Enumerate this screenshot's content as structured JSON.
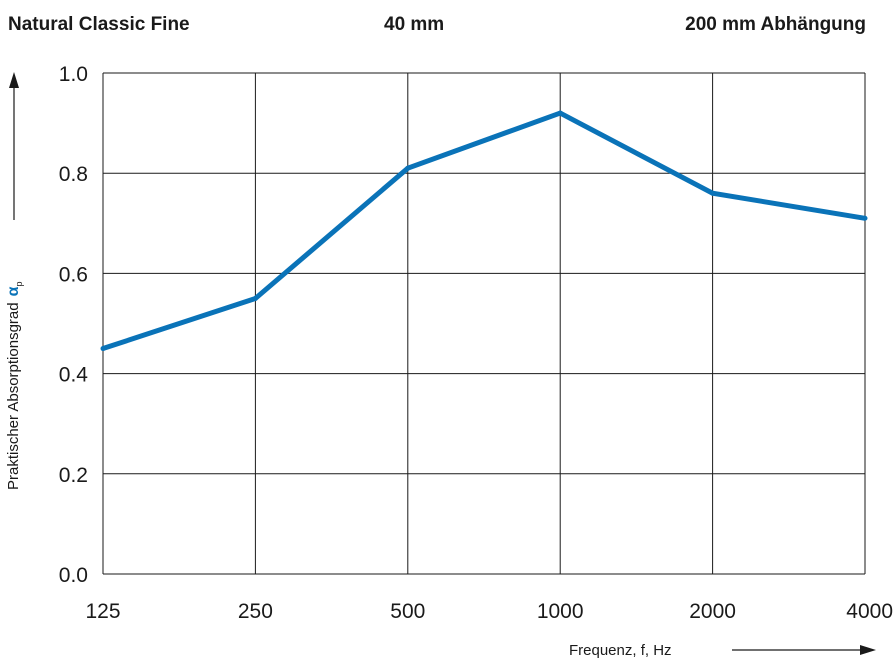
{
  "header": {
    "product": "Natural Classic Fine",
    "thickness": "40 mm",
    "suspension": "200 mm Abhängung"
  },
  "chart_data": {
    "type": "line",
    "categories": [
      "125",
      "250",
      "500",
      "1000",
      "2000",
      "4000"
    ],
    "series": [
      {
        "values": [
          0.45,
          0.55,
          0.81,
          0.92,
          0.76,
          0.71
        ]
      }
    ],
    "xlabel": "Frequenz, f, Hz",
    "ylabel": "Praktischer Absorptionsgrad",
    "ylabel_symbol": "α",
    "ylabel_subscript": "p",
    "ylim": [
      0.0,
      1.0
    ],
    "yticks": [
      "0.0",
      "0.2",
      "0.4",
      "0.6",
      "0.8",
      "1.0"
    ],
    "grid": true,
    "line_color": "#0a73b8",
    "symbol_color": "#0a73b8"
  }
}
